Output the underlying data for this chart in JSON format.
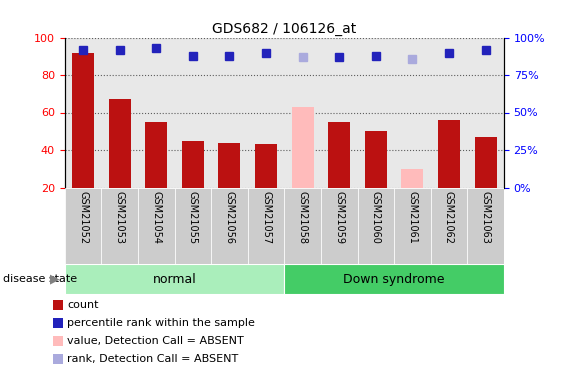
{
  "title": "GDS682 / 106126_at",
  "samples": [
    "GSM21052",
    "GSM21053",
    "GSM21054",
    "GSM21055",
    "GSM21056",
    "GSM21057",
    "GSM21058",
    "GSM21059",
    "GSM21060",
    "GSM21061",
    "GSM21062",
    "GSM21063"
  ],
  "bar_values": [
    92,
    67,
    55,
    45,
    44,
    43,
    63,
    55,
    50,
    30,
    56,
    47
  ],
  "bar_colors": [
    "#bb1111",
    "#bb1111",
    "#bb1111",
    "#bb1111",
    "#bb1111",
    "#bb1111",
    "#ffbbbb",
    "#bb1111",
    "#bb1111",
    "#ffbbbb",
    "#bb1111",
    "#bb1111"
  ],
  "percentile_values": [
    92,
    92,
    93,
    88,
    88,
    90,
    87,
    87,
    88,
    86,
    90,
    92
  ],
  "percentile_colors": [
    "#2222bb",
    "#2222bb",
    "#2222bb",
    "#2222bb",
    "#2222bb",
    "#2222bb",
    "#aaaadd",
    "#2222bb",
    "#2222bb",
    "#aaaadd",
    "#2222bb",
    "#2222bb"
  ],
  "ylim_left": [
    20,
    100
  ],
  "ylim_right": [
    0,
    100
  ],
  "yticks_left": [
    20,
    40,
    60,
    80,
    100
  ],
  "yticks_right": [
    0,
    25,
    50,
    75,
    100
  ],
  "yticklabels_right": [
    "0%",
    "25%",
    "50%",
    "75%",
    "100%"
  ],
  "groups": [
    {
      "label": "normal",
      "start": 0,
      "end": 5,
      "color": "#aaeebb"
    },
    {
      "label": "Down syndrome",
      "start": 6,
      "end": 11,
      "color": "#44cc66"
    }
  ],
  "group_label_prefix": "disease state",
  "legend": [
    {
      "label": "count",
      "color": "#bb1111"
    },
    {
      "label": "percentile rank within the sample",
      "color": "#2222bb"
    },
    {
      "label": "value, Detection Call = ABSENT",
      "color": "#ffbbbb"
    },
    {
      "label": "rank, Detection Call = ABSENT",
      "color": "#aaaadd"
    }
  ],
  "bar_width": 0.6,
  "percentile_marker_size": 6,
  "col_bg_color": "#cccccc",
  "plot_bg": "white"
}
